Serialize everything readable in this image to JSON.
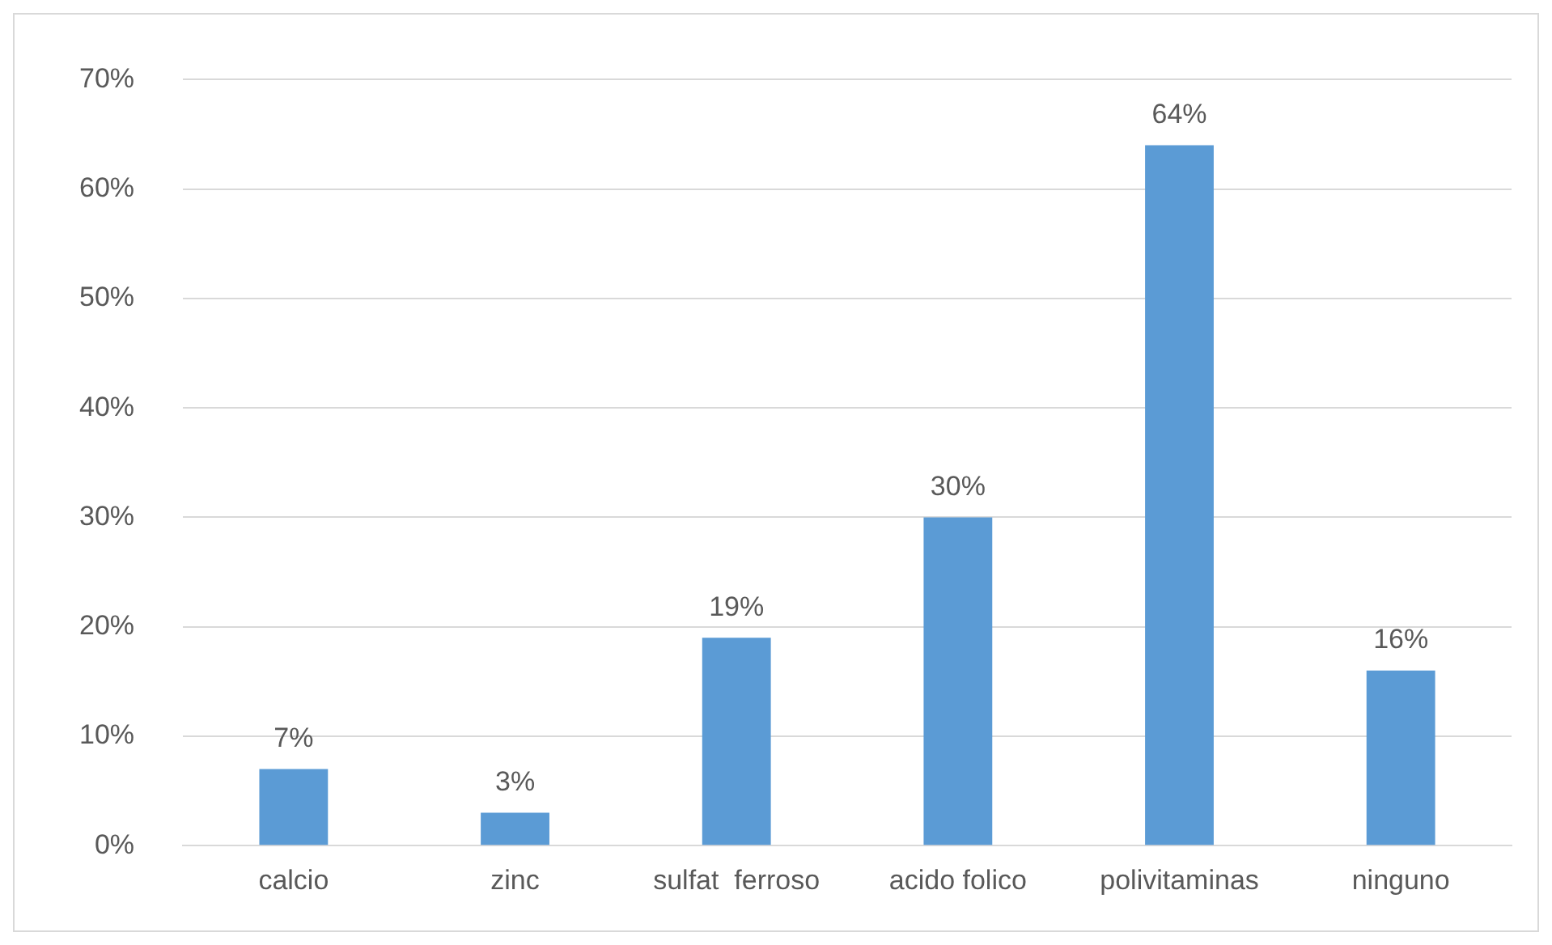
{
  "chart_data": {
    "type": "bar",
    "categories": [
      "calcio",
      "zinc",
      "sulfat  ferroso",
      "acido folico",
      "polivitaminas",
      "ninguno"
    ],
    "values": [
      7,
      3,
      19,
      30,
      64,
      16
    ],
    "value_labels": [
      "7%",
      "3%",
      "19%",
      "30%",
      "64%",
      "16%"
    ],
    "color": "#5b9bd5",
    "ylim": [
      0,
      70
    ],
    "yticks": [
      {
        "value": 0,
        "label": "0%"
      },
      {
        "value": 10,
        "label": "10%"
      },
      {
        "value": 20,
        "label": "20%"
      },
      {
        "value": 30,
        "label": "30%"
      },
      {
        "value": 40,
        "label": "40%"
      },
      {
        "value": 50,
        "label": "50%"
      },
      {
        "value": 60,
        "label": "60%"
      },
      {
        "value": 70,
        "label": "70%"
      }
    ],
    "grid": "y",
    "legend": false
  }
}
